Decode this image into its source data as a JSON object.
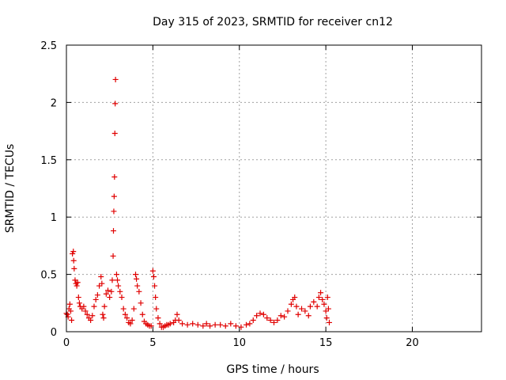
{
  "chart_data": {
    "type": "scatter",
    "title": "Day 315 of 2023, SRMTID for receiver cn12",
    "xlabel": "GPS time / hours",
    "ylabel": "SRMTID / TECUs",
    "xlim": [
      0,
      24
    ],
    "ylim": [
      0,
      2.5
    ],
    "x_ticks": [
      0,
      5,
      10,
      15,
      20
    ],
    "y_ticks": [
      0,
      0.5,
      1,
      1.5,
      2,
      2.5
    ],
    "x_tick_labels": [
      "0",
      "5",
      "10",
      "15",
      "20"
    ],
    "y_tick_labels": [
      "0",
      "0.5",
      "1",
      "1.5",
      "2",
      "2.5"
    ],
    "grid": true,
    "marker": "+",
    "color": "#e00000",
    "series": [
      {
        "points": [
          [
            0.0,
            0.16
          ],
          [
            0.05,
            0.15
          ],
          [
            0.1,
            0.13
          ],
          [
            0.15,
            0.2
          ],
          [
            0.2,
            0.24
          ],
          [
            0.25,
            0.18
          ],
          [
            0.3,
            0.1
          ],
          [
            0.35,
            0.68
          ],
          [
            0.4,
            0.7
          ],
          [
            0.42,
            0.62
          ],
          [
            0.45,
            0.55
          ],
          [
            0.5,
            0.45
          ],
          [
            0.55,
            0.42
          ],
          [
            0.6,
            0.4
          ],
          [
            0.65,
            0.43
          ],
          [
            0.7,
            0.3
          ],
          [
            0.75,
            0.25
          ],
          [
            0.8,
            0.22
          ],
          [
            0.9,
            0.2
          ],
          [
            1.0,
            0.22
          ],
          [
            1.1,
            0.18
          ],
          [
            1.2,
            0.15
          ],
          [
            1.3,
            0.12
          ],
          [
            1.4,
            0.1
          ],
          [
            1.5,
            0.14
          ],
          [
            1.6,
            0.22
          ],
          [
            1.7,
            0.28
          ],
          [
            1.8,
            0.32
          ],
          [
            1.9,
            0.4
          ],
          [
            2.0,
            0.48
          ],
          [
            2.05,
            0.42
          ],
          [
            2.1,
            0.15
          ],
          [
            2.15,
            0.12
          ],
          [
            2.2,
            0.22
          ],
          [
            2.3,
            0.33
          ],
          [
            2.4,
            0.36
          ],
          [
            2.5,
            0.3
          ],
          [
            2.6,
            0.35
          ],
          [
            2.65,
            0.45
          ],
          [
            2.7,
            0.66
          ],
          [
            2.72,
            0.88
          ],
          [
            2.74,
            1.05
          ],
          [
            2.76,
            1.18
          ],
          [
            2.78,
            1.35
          ],
          [
            2.8,
            1.73
          ],
          [
            2.82,
            1.99
          ],
          [
            2.84,
            2.2
          ],
          [
            2.9,
            0.5
          ],
          [
            2.95,
            0.45
          ],
          [
            3.0,
            0.4
          ],
          [
            3.1,
            0.35
          ],
          [
            3.2,
            0.3
          ],
          [
            3.3,
            0.2
          ],
          [
            3.4,
            0.15
          ],
          [
            3.5,
            0.12
          ],
          [
            3.6,
            0.08
          ],
          [
            3.7,
            0.07
          ],
          [
            3.8,
            0.1
          ],
          [
            3.9,
            0.2
          ],
          [
            4.0,
            0.5
          ],
          [
            4.05,
            0.46
          ],
          [
            4.1,
            0.4
          ],
          [
            4.2,
            0.35
          ],
          [
            4.3,
            0.25
          ],
          [
            4.4,
            0.15
          ],
          [
            4.5,
            0.09
          ],
          [
            4.6,
            0.07
          ],
          [
            4.7,
            0.06
          ],
          [
            4.8,
            0.05
          ],
          [
            4.9,
            0.05
          ],
          [
            5.0,
            0.53
          ],
          [
            5.05,
            0.48
          ],
          [
            5.1,
            0.4
          ],
          [
            5.15,
            0.3
          ],
          [
            5.2,
            0.2
          ],
          [
            5.3,
            0.12
          ],
          [
            5.4,
            0.07
          ],
          [
            5.5,
            0.04
          ],
          [
            5.6,
            0.04
          ],
          [
            5.7,
            0.05
          ],
          [
            5.8,
            0.06
          ],
          [
            5.9,
            0.06
          ],
          [
            6.0,
            0.07
          ],
          [
            6.2,
            0.08
          ],
          [
            6.3,
            0.1
          ],
          [
            6.4,
            0.15
          ],
          [
            6.5,
            0.1
          ],
          [
            6.7,
            0.07
          ],
          [
            7.0,
            0.06
          ],
          [
            7.3,
            0.07
          ],
          [
            7.6,
            0.06
          ],
          [
            7.9,
            0.05
          ],
          [
            8.1,
            0.07
          ],
          [
            8.3,
            0.05
          ],
          [
            8.6,
            0.06
          ],
          [
            8.9,
            0.06
          ],
          [
            9.2,
            0.05
          ],
          [
            9.5,
            0.07
          ],
          [
            9.8,
            0.05
          ],
          [
            10.1,
            0.04
          ],
          [
            10.4,
            0.06
          ],
          [
            10.6,
            0.07
          ],
          [
            10.8,
            0.1
          ],
          [
            11.0,
            0.14
          ],
          [
            11.2,
            0.16
          ],
          [
            11.4,
            0.15
          ],
          [
            11.6,
            0.12
          ],
          [
            11.8,
            0.1
          ],
          [
            12.0,
            0.08
          ],
          [
            12.2,
            0.1
          ],
          [
            12.4,
            0.14
          ],
          [
            12.6,
            0.13
          ],
          [
            12.8,
            0.18
          ],
          [
            13.0,
            0.24
          ],
          [
            13.1,
            0.28
          ],
          [
            13.2,
            0.3
          ],
          [
            13.3,
            0.22
          ],
          [
            13.4,
            0.15
          ],
          [
            13.6,
            0.2
          ],
          [
            13.8,
            0.18
          ],
          [
            14.0,
            0.14
          ],
          [
            14.1,
            0.22
          ],
          [
            14.3,
            0.26
          ],
          [
            14.5,
            0.22
          ],
          [
            14.6,
            0.3
          ],
          [
            14.7,
            0.34
          ],
          [
            14.8,
            0.28
          ],
          [
            14.9,
            0.24
          ],
          [
            15.0,
            0.18
          ],
          [
            15.05,
            0.12
          ],
          [
            15.1,
            0.3
          ],
          [
            15.15,
            0.2
          ],
          [
            15.2,
            0.08
          ]
        ]
      }
    ]
  }
}
